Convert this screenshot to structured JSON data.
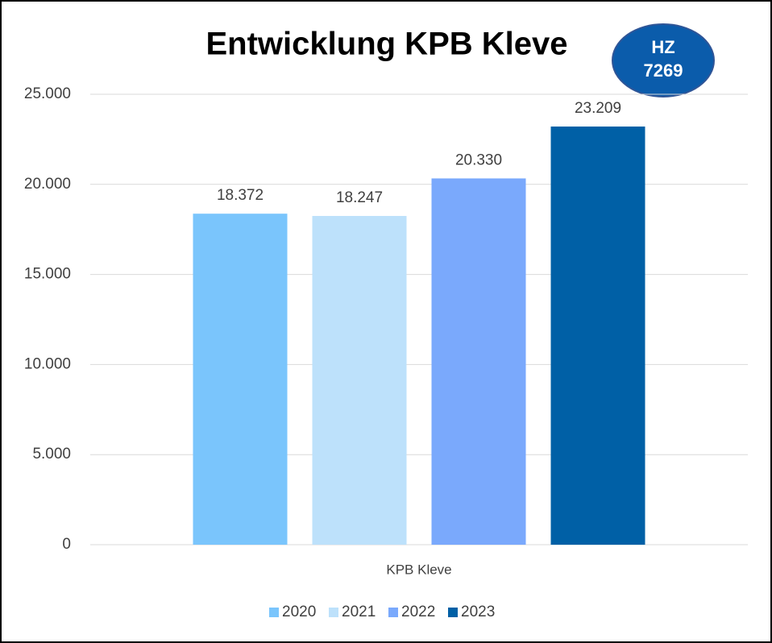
{
  "chart_data": {
    "type": "bar",
    "title": "Entwicklung KPB Kleve",
    "badge": [
      "HZ",
      "7269"
    ],
    "categories": [
      "KPB Kleve"
    ],
    "series": [
      {
        "name": "2020",
        "color": "#7ac5fc",
        "values": [
          18372
        ],
        "value_labels": [
          "18.372"
        ]
      },
      {
        "name": "2021",
        "color": "#bde1fb",
        "values": [
          18247
        ],
        "value_labels": [
          "18.247"
        ]
      },
      {
        "name": "2022",
        "color": "#7aa9fc",
        "values": [
          20330
        ],
        "value_labels": [
          "20.330"
        ]
      },
      {
        "name": "2023",
        "color": "#0060a6",
        "values": [
          23209
        ],
        "value_labels": [
          "23.209"
        ]
      }
    ],
    "ylim": [
      0,
      25000
    ],
    "yticks": [
      {
        "value": 0,
        "label": "0"
      },
      {
        "value": 5000,
        "label": "5.000"
      },
      {
        "value": 10000,
        "label": "10.000"
      },
      {
        "value": 15000,
        "label": "15.000"
      },
      {
        "value": 20000,
        "label": "20.000"
      },
      {
        "value": 25000,
        "label": "25.000"
      }
    ],
    "grid": true,
    "legend": "bottom"
  }
}
